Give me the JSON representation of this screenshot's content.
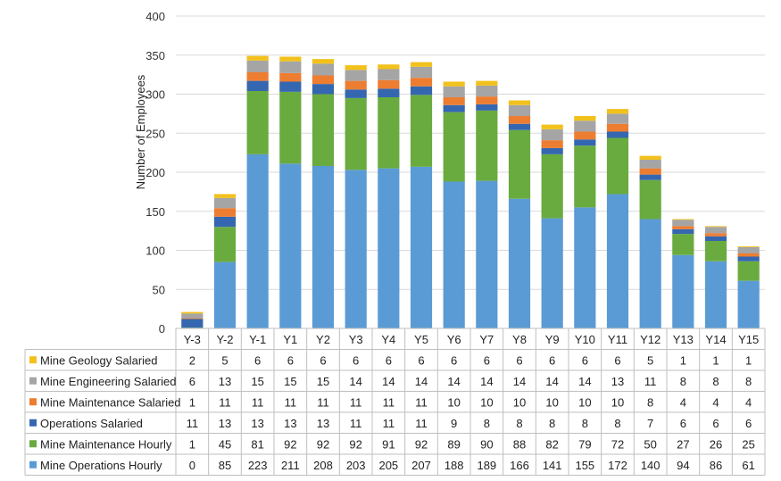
{
  "chart_data": {
    "type": "bar",
    "stacked": true,
    "ylabel": "Number of Employees",
    "ylim": [
      0,
      400
    ],
    "yticks": [
      0,
      50,
      100,
      150,
      200,
      250,
      300,
      350,
      400
    ],
    "ytick_labels": [
      "0",
      "50",
      "100",
      "150",
      "200",
      "250",
      "300",
      "350",
      "400"
    ],
    "grid": true,
    "legend": "data-table-left",
    "categories": [
      "Y-3",
      "Y-2",
      "Y-1",
      "Y1",
      "Y2",
      "Y3",
      "Y4",
      "Y5",
      "Y6",
      "Y7",
      "Y8",
      "Y9",
      "Y10",
      "Y11",
      "Y12",
      "Y13",
      "Y14",
      "Y15"
    ],
    "series": [
      {
        "name": "Mine Operations Hourly",
        "color": "#5b9bd5",
        "values": [
          0,
          85,
          223,
          211,
          208,
          203,
          205,
          207,
          188,
          189,
          166,
          141,
          155,
          172,
          140,
          94,
          86,
          61
        ]
      },
      {
        "name": "Mine Maintenance Hourly",
        "color": "#6aab3f",
        "values": [
          1,
          45,
          81,
          92,
          92,
          92,
          91,
          92,
          89,
          90,
          88,
          82,
          79,
          72,
          50,
          27,
          26,
          25
        ]
      },
      {
        "name": "Operations Salaried",
        "color": "#3467b0",
        "values": [
          11,
          13,
          13,
          13,
          13,
          11,
          11,
          11,
          9,
          8,
          8,
          8,
          8,
          8,
          7,
          6,
          6,
          6
        ]
      },
      {
        "name": "Mine Maintenance Salaried",
        "color": "#ed7d31",
        "values": [
          1,
          11,
          11,
          11,
          11,
          11,
          11,
          11,
          10,
          10,
          10,
          10,
          10,
          10,
          8,
          4,
          4,
          4
        ]
      },
      {
        "name": "Mine Engineering Salaried",
        "color": "#a5a5a5",
        "values": [
          6,
          13,
          15,
          15,
          15,
          14,
          14,
          14,
          14,
          14,
          14,
          14,
          14,
          13,
          11,
          8,
          8,
          8
        ]
      },
      {
        "name": "Mine Geology Salaried",
        "color": "#f2c11c",
        "values": [
          2,
          5,
          6,
          6,
          6,
          6,
          6,
          6,
          6,
          6,
          6,
          6,
          6,
          6,
          5,
          1,
          1,
          1
        ]
      }
    ],
    "table_row_order": [
      5,
      4,
      3,
      2,
      1,
      0
    ]
  }
}
